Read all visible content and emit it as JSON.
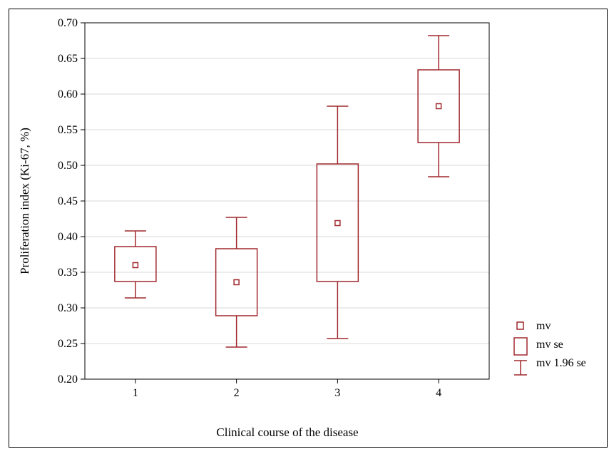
{
  "chart_data": {
    "type": "boxplot",
    "xlabel": "Clinical  course of the disease",
    "ylabel": "Proliferation index (Ki-67, %)",
    "ylim": [
      0.2,
      0.7
    ],
    "yticks": [
      "0.20",
      "0.25",
      "0.30",
      "0.35",
      "0.40",
      "0.45",
      "0.50",
      "0.55",
      "0.60",
      "0.65",
      "0.70"
    ],
    "categories": [
      "1",
      "2",
      "3",
      "4"
    ],
    "mean": [
      0.36,
      0.336,
      0.419,
      0.583
    ],
    "se_low": [
      0.337,
      0.289,
      0.337,
      0.532
    ],
    "se_high": [
      0.386,
      0.383,
      0.502,
      0.634
    ],
    "ci_low": [
      0.314,
      0.245,
      0.257,
      0.484
    ],
    "ci_high": [
      0.408,
      0.427,
      0.583,
      0.682
    ],
    "grid": true,
    "legend_position": "right",
    "legend": [
      {
        "marker": "mean-square",
        "label": "mv"
      },
      {
        "marker": "se-box",
        "label": "mv se"
      },
      {
        "marker": "whisker",
        "label": "mv 1.96 se"
      }
    ],
    "colors": {
      "series": "#a0282d",
      "grid": "#d9d9d9",
      "axis": "#000000"
    }
  }
}
